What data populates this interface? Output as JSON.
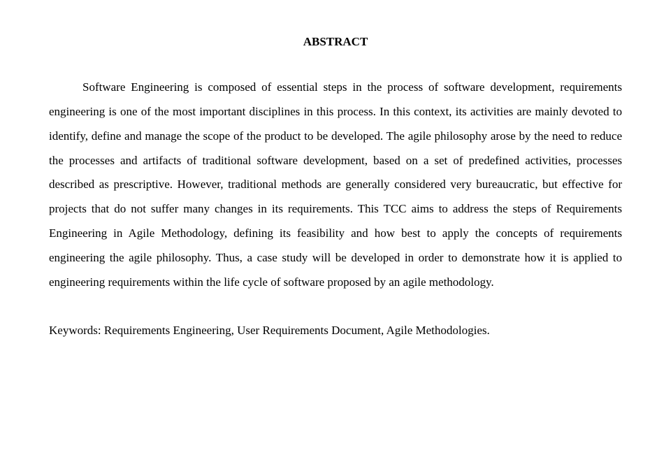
{
  "title": "ABSTRACT",
  "paragraph": "Software Engineering is composed of essential steps in the process of software development, requirements engineering is one of the most important disciplines in this process. In this context, its activities are mainly devoted to identify, define and manage the scope of the product to be developed. The agile philosophy arose by the need to reduce the processes and artifacts of traditional software development, based on a set of predefined activities, processes described as prescriptive. However, traditional methods are generally considered very bureaucratic, but effective for projects that do not suffer many changes in its requirements. This TCC aims to address the steps of Requirements Engineering in Agile Methodology, defining its feasibility and how best to apply the concepts of requirements engineering the agile philosophy. Thus, a case study will be developed in order to demonstrate how it is applied to engineering requirements within the life cycle of software proposed by an agile methodology.",
  "keywords": "Keywords: Requirements Engineering, User Requirements Document, Agile Methodologies."
}
